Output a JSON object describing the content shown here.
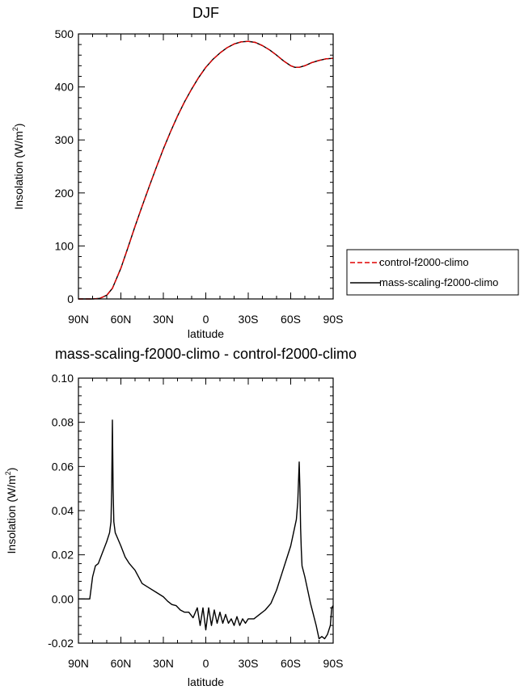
{
  "chart_data": [
    {
      "type": "line",
      "title": "DJF",
      "xlabel": "latitude",
      "ylabel": "Insolation (W/m",
      "ylabel_sup": "2",
      "ylabel_end": ")",
      "xlim": [
        90,
        -90
      ],
      "ylim": [
        0,
        500
      ],
      "xticks": [
        {
          "v": 90,
          "label": "90N"
        },
        {
          "v": 60,
          "label": "60N"
        },
        {
          "v": 30,
          "label": "30N"
        },
        {
          "v": 0,
          "label": "0"
        },
        {
          "v": -30,
          "label": "30S"
        },
        {
          "v": -60,
          "label": "60S"
        },
        {
          "v": -90,
          "label": "90S"
        }
      ],
      "yticks": [
        {
          "v": 0,
          "label": "0"
        },
        {
          "v": 100,
          "label": "100"
        },
        {
          "v": 200,
          "label": "200"
        },
        {
          "v": 300,
          "label": "300"
        },
        {
          "v": 400,
          "label": "400"
        },
        {
          "v": 500,
          "label": "500"
        }
      ],
      "series": [
        {
          "name": "control-f2000-climo",
          "color": "#e00000",
          "dash": "dashed",
          "x": [
            90,
            80,
            75,
            70,
            66,
            60,
            55,
            50,
            45,
            40,
            35,
            30,
            25,
            20,
            15,
            10,
            5,
            0,
            -5,
            -10,
            -15,
            -20,
            -25,
            -30,
            -35,
            -40,
            -45,
            -50,
            -55,
            -60,
            -63,
            -66,
            -70,
            -75,
            -80,
            -85,
            -90
          ],
          "y": [
            0,
            0,
            1,
            7,
            20,
            58,
            97,
            137,
            175,
            212,
            248,
            283,
            315,
            345,
            372,
            396,
            418,
            437,
            452,
            464,
            474,
            481,
            485,
            486,
            484,
            478,
            470,
            460,
            449,
            440,
            437,
            437,
            440,
            446,
            450,
            453,
            454
          ]
        },
        {
          "name": "mass-scaling-f2000-climo",
          "color": "#000000",
          "dash": "solid",
          "x": [
            90,
            80,
            75,
            70,
            66,
            60,
            55,
            50,
            45,
            40,
            35,
            30,
            25,
            20,
            15,
            10,
            5,
            0,
            -5,
            -10,
            -15,
            -20,
            -25,
            -30,
            -35,
            -40,
            -45,
            -50,
            -55,
            -60,
            -63,
            -66,
            -70,
            -75,
            -80,
            -85,
            -90
          ],
          "y": [
            0,
            0,
            1,
            7,
            20,
            58,
            97,
            137,
            175,
            212,
            248,
            283,
            315,
            345,
            372,
            396,
            418,
            437,
            452,
            464,
            474,
            481,
            485,
            486,
            484,
            478,
            470,
            460,
            449,
            440,
            437,
            437,
            440,
            446,
            450,
            453,
            454
          ]
        }
      ],
      "legend": [
        {
          "label": "control-f2000-climo",
          "color": "#e00000",
          "dash": "dashed"
        },
        {
          "label": "mass-scaling-f2000-climo",
          "color": "#000000",
          "dash": "solid"
        }
      ]
    },
    {
      "type": "line",
      "title": "mass-scaling-f2000-climo - control-f2000-climo",
      "xlabel": "latitude",
      "ylabel": "Insolation (W/m",
      "ylabel_sup": "2",
      "ylabel_end": ")",
      "xlim": [
        90,
        -90
      ],
      "ylim": [
        -0.02,
        0.1
      ],
      "xticks": [
        {
          "v": 90,
          "label": "90N"
        },
        {
          "v": 60,
          "label": "60N"
        },
        {
          "v": 30,
          "label": "30N"
        },
        {
          "v": 0,
          "label": "0"
        },
        {
          "v": -30,
          "label": "30S"
        },
        {
          "v": -60,
          "label": "60S"
        },
        {
          "v": -90,
          "label": "90S"
        }
      ],
      "yticks": [
        {
          "v": -0.02,
          "label": "-0.02"
        },
        {
          "v": 0.0,
          "label": "0.00"
        },
        {
          "v": 0.02,
          "label": "0.02"
        },
        {
          "v": 0.04,
          "label": "0.04"
        },
        {
          "v": 0.06,
          "label": "0.06"
        },
        {
          "v": 0.08,
          "label": "0.08"
        },
        {
          "v": 0.1,
          "label": "0.10"
        }
      ],
      "series": [
        {
          "name": "mass-scaling-f2000-climo - control-f2000-climo",
          "color": "#000000",
          "dash": "solid",
          "x": [
            90,
            82,
            80,
            78,
            76,
            73,
            70,
            68,
            67,
            66.5,
            66,
            65.5,
            65,
            64,
            62,
            60,
            57,
            54,
            50,
            45,
            40,
            35,
            30,
            27,
            24,
            21,
            18,
            15,
            12,
            9,
            6,
            4,
            2,
            0,
            -2,
            -4,
            -6,
            -8,
            -10,
            -12,
            -14,
            -16,
            -18,
            -20,
            -22,
            -24,
            -26,
            -28,
            -30,
            -34,
            -38,
            -42,
            -46,
            -50,
            -54,
            -57,
            -60,
            -62,
            -64,
            -65,
            -66,
            -66.5,
            -67,
            -67.5,
            -68,
            -70,
            -72,
            -74,
            -76,
            -78,
            -80,
            -82,
            -84,
            -86,
            -88,
            -89,
            -90
          ],
          "y": [
            0,
            0,
            0.01,
            0.015,
            0.016,
            0.021,
            0.026,
            0.03,
            0.035,
            0.05,
            0.081,
            0.05,
            0.035,
            0.03,
            0.027,
            0.024,
            0.019,
            0.016,
            0.013,
            0.007,
            0.005,
            0.003,
            0.001,
            -0.001,
            -0.0025,
            -0.003,
            -0.005,
            -0.006,
            -0.006,
            -0.0085,
            -0.004,
            -0.012,
            -0.004,
            -0.014,
            -0.004,
            -0.012,
            -0.005,
            -0.011,
            -0.006,
            -0.011,
            -0.007,
            -0.011,
            -0.009,
            -0.012,
            -0.008,
            -0.012,
            -0.009,
            -0.011,
            -0.009,
            -0.009,
            -0.007,
            -0.005,
            -0.002,
            0.004,
            0.012,
            0.018,
            0.024,
            0.03,
            0.036,
            0.044,
            0.062,
            0.05,
            0.032,
            0.022,
            0.015,
            0.01,
            0.004,
            -0.002,
            -0.007,
            -0.012,
            -0.018,
            -0.017,
            -0.018,
            -0.016,
            -0.012,
            -0.004,
            -0.003
          ]
        }
      ]
    }
  ]
}
